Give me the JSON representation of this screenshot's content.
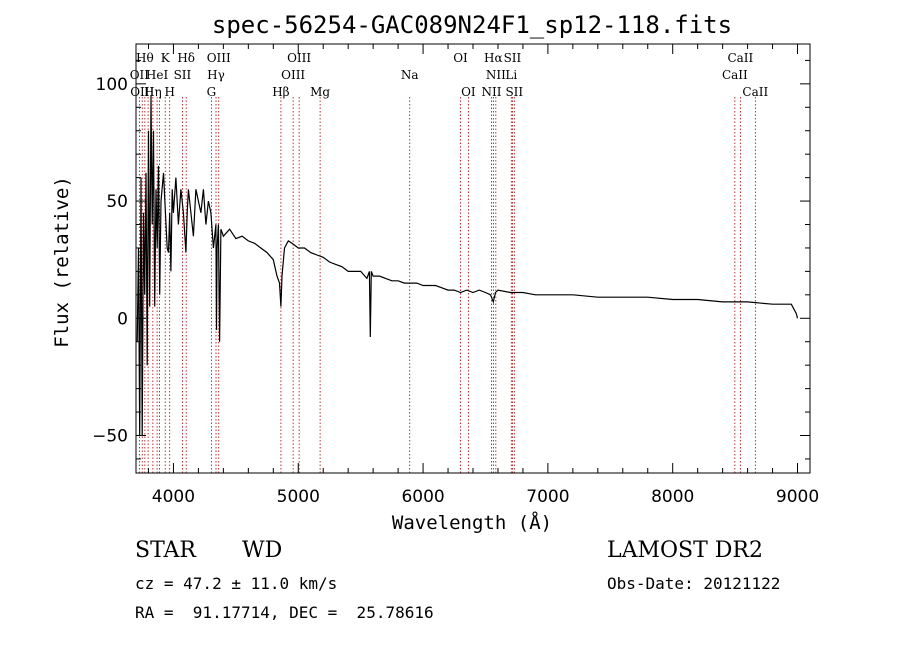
{
  "chart_data": {
    "type": "line",
    "title": "spec-56254-GAC089N24F1_sp12-118.fits",
    "xlabel": "Wavelength (Å)",
    "ylabel": "Flux (relative)",
    "xlim": [
      3700,
      9100
    ],
    "ylim": [
      -66,
      117
    ],
    "xticks": [
      4000,
      5000,
      6000,
      7000,
      8000,
      9000
    ],
    "xtick_labels": [
      "4000",
      "5000",
      "6000",
      "7000",
      "8000",
      "9000"
    ],
    "yticks": [
      -50,
      0,
      50,
      100
    ],
    "ytick_labels": [
      "−50",
      "0",
      "50",
      "100"
    ],
    "grid": false,
    "series": [
      {
        "x": [
          3710,
          3720,
          3730,
          3740,
          3750,
          3760,
          3770,
          3780,
          3790,
          3800,
          3810,
          3820,
          3830,
          3840,
          3850,
          3860,
          3870,
          3880,
          3890,
          3900,
          3920,
          3940,
          3950,
          3960,
          3970,
          3980,
          3990,
          4000,
          4020,
          4040,
          4060,
          4080,
          4100,
          4110,
          4120,
          4140,
          4160,
          4180,
          4200,
          4220,
          4240,
          4260,
          4280,
          4300,
          4320,
          4340,
          4345,
          4350,
          4360,
          4370,
          4380,
          4400,
          4450,
          4500,
          4550,
          4600,
          4650,
          4700,
          4750,
          4800,
          4830,
          4850,
          4861,
          4870,
          4890,
          4920,
          4950,
          5000,
          5050,
          5100,
          5150,
          5200,
          5250,
          5300,
          5350,
          5400,
          5450,
          5500,
          5550,
          5570,
          5577,
          5585,
          5600,
          5650,
          5700,
          5750,
          5800,
          5850,
          5900,
          5950,
          6000,
          6050,
          6100,
          6150,
          6200,
          6250,
          6300,
          6350,
          6400,
          6450,
          6500,
          6540,
          6563,
          6580,
          6600,
          6700,
          6800,
          6900,
          7000,
          7200,
          7400,
          7600,
          7800,
          8000,
          8200,
          8400,
          8600,
          8800,
          8950,
          8990,
          9000
        ],
        "y": [
          -10,
          30,
          -50,
          60,
          -50,
          45,
          10,
          62,
          -20,
          80,
          5,
          95,
          40,
          80,
          5,
          55,
          30,
          65,
          10,
          50,
          62,
          40,
          30,
          28,
          45,
          20,
          55,
          45,
          60,
          40,
          55,
          45,
          28,
          45,
          55,
          45,
          35,
          55,
          50,
          45,
          55,
          40,
          50,
          45,
          30,
          40,
          -5,
          30,
          40,
          -10,
          38,
          35,
          38,
          34,
          35,
          33,
          32,
          30,
          28,
          25,
          18,
          15,
          5,
          18,
          30,
          33,
          32,
          30,
          30,
          28,
          27,
          26,
          24,
          23,
          22,
          20,
          20,
          20,
          17,
          20,
          -8,
          20,
          18,
          18,
          17,
          16,
          16,
          15,
          15,
          15,
          14,
          14,
          14,
          13,
          12,
          12,
          11,
          12,
          11,
          12,
          11,
          10,
          7,
          11,
          12,
          11,
          11,
          10,
          10,
          10,
          9,
          9,
          9,
          8,
          8,
          7,
          7,
          6,
          6,
          2,
          0
        ]
      }
    ],
    "lines": {
      "top": [
        {
          "wl": 3727,
          "label": "OII"
        },
        {
          "wl": 3750,
          "label": "OIII"
        },
        {
          "wl": 3771,
          "label": "Hθ"
        },
        {
          "wl": 3797,
          "label": "Hθ"
        },
        {
          "wl": 3835,
          "label": "Hη"
        },
        {
          "wl": 3869,
          "label": "HeI"
        },
        {
          "wl": 3889,
          "label": "H"
        },
        {
          "wl": 3934,
          "label": "K"
        },
        {
          "wl": 3970,
          "label": "H"
        },
        {
          "wl": 4072,
          "label": "SII"
        },
        {
          "wl": 4102,
          "label": "Hδ"
        },
        {
          "wl": 4304,
          "label": "G"
        },
        {
          "wl": 4341,
          "label": "Hγ"
        },
        {
          "wl": 4363,
          "label": "OIII"
        },
        {
          "wl": 4861,
          "label": "Hβ"
        },
        {
          "wl": 4959,
          "label": "OIII"
        },
        {
          "wl": 5007,
          "label": "OIII"
        },
        {
          "wl": 5175,
          "label": "Mg"
        },
        {
          "wl": 5893,
          "label": "Na"
        },
        {
          "wl": 6300,
          "label": "OI"
        },
        {
          "wl": 6363,
          "label": "OI"
        },
        {
          "wl": 6548,
          "label": "NII"
        },
        {
          "wl": 6563,
          "label": "Hα"
        },
        {
          "wl": 6583,
          "label": "NII"
        },
        {
          "wl": 6707,
          "label": "Li"
        },
        {
          "wl": 6716,
          "label": "SII"
        },
        {
          "wl": 6731,
          "label": "SII"
        },
        {
          "wl": 8498,
          "label": "CaII"
        },
        {
          "wl": 8542,
          "label": "CaII"
        },
        {
          "wl": 8662,
          "label": "CaII"
        }
      ],
      "label_rows": [
        {
          "row": 0,
          "items": [
            {
              "wl": 3771,
              "label": "Hθ"
            },
            {
              "wl": 3934,
              "label": "K"
            },
            {
              "wl": 4102,
              "label": "Hδ"
            },
            {
              "wl": 4363,
              "label": "OIII"
            },
            {
              "wl": 5007,
              "label": "OIII"
            },
            {
              "wl": 6300,
              "label": "OI"
            },
            {
              "wl": 6563,
              "label": "Hα"
            },
            {
              "wl": 6716,
              "label": "SII"
            },
            {
              "wl": 8542,
              "label": "CaII"
            }
          ]
        },
        {
          "row": 1,
          "items": [
            {
              "wl": 3727,
              "label": "OII"
            },
            {
              "wl": 3869,
              "label": "HeI"
            },
            {
              "wl": 4072,
              "label": "SII"
            },
            {
              "wl": 4341,
              "label": "Hγ"
            },
            {
              "wl": 4959,
              "label": "OIII"
            },
            {
              "wl": 5893,
              "label": "Na"
            },
            {
              "wl": 6583,
              "label": "NII"
            },
            {
              "wl": 6707,
              "label": "Li"
            },
            {
              "wl": 8498,
              "label": "CaII"
            }
          ]
        },
        {
          "row": 2,
          "items": [
            {
              "wl": 3750,
              "label": "OIII"
            },
            {
              "wl": 3835,
              "label": "Hη"
            },
            {
              "wl": 3970,
              "label": "H"
            },
            {
              "wl": 4304,
              "label": "G"
            },
            {
              "wl": 4861,
              "label": "Hβ"
            },
            {
              "wl": 5175,
              "label": "Mg"
            },
            {
              "wl": 6363,
              "label": "OI"
            },
            {
              "wl": 6548,
              "label": "NII"
            },
            {
              "wl": 6731,
              "label": "SII"
            },
            {
              "wl": 8662,
              "label": "CaII"
            }
          ]
        }
      ]
    }
  },
  "info": {
    "class_label": "STAR",
    "subclass_label": "WD",
    "survey": "LAMOST DR2",
    "cz": "cz = 47.2 ± 11.0 km/s",
    "obs_date": "Obs-Date: 20121122",
    "coords": "RA =  91.17714, DEC =  25.78616"
  },
  "colors": {
    "spectrum": "#000000",
    "line_markers": "#b00000",
    "axes": "#000000"
  }
}
